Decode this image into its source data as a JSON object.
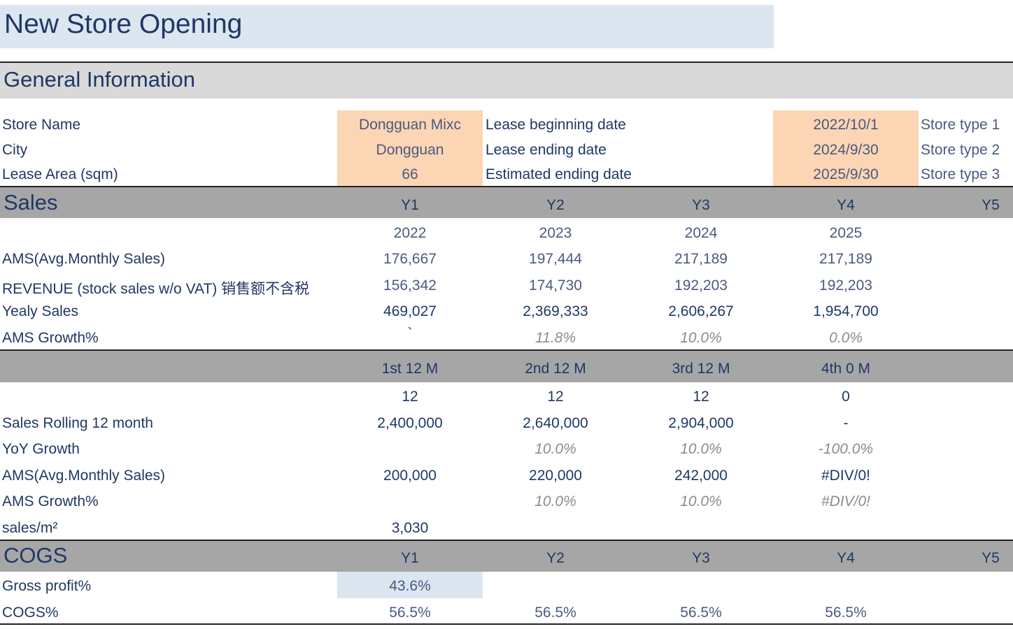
{
  "title": "New Store Opening",
  "general": {
    "heading": "General Information",
    "rows": [
      {
        "label": "Store Name",
        "value": "Dongguan Mixc",
        "lease_label": "Lease beginning date",
        "lease_value": "2022/10/1",
        "type": "Store type 1"
      },
      {
        "label": "City",
        "value": "Dongguan",
        "lease_label": "Lease ending date",
        "lease_value": "2024/9/30",
        "type": "Store type 2"
      },
      {
        "label": "Lease Area (sqm)",
        "value": "66",
        "lease_label": "Estimated ending date",
        "lease_value": "2025/9/30",
        "type": "Store type 3"
      }
    ]
  },
  "sales": {
    "heading": "Sales",
    "year_headers": [
      "Y1",
      "Y2",
      "Y3",
      "Y4",
      "Y5"
    ],
    "years": [
      "2022",
      "2023",
      "2024",
      "2025"
    ],
    "ams": {
      "label": "AMS(Avg.Monthly Sales)",
      "values": [
        "176,667",
        "197,444",
        "217,189",
        "217,189"
      ]
    },
    "revenue": {
      "label": "REVENUE (stock sales w/o VAT) 销售额不含税",
      "values": [
        "156,342",
        "174,730",
        "192,203",
        "192,203"
      ]
    },
    "yearly": {
      "label": "Yealy Sales",
      "values": [
        "469,027",
        "2,369,333",
        "2,606,267",
        "1,954,700"
      ]
    },
    "growth": {
      "label": "AMS Growth%",
      "values": [
        "`",
        "11.8%",
        "10.0%",
        "0.0%"
      ]
    }
  },
  "rolling": {
    "period_headers": [
      "1st 12 M",
      "2nd 12 M",
      "3rd 12 M",
      "4th 0 M"
    ],
    "months": [
      "12",
      "12",
      "12",
      "0"
    ],
    "sales_rolling": {
      "label": "Sales Rolling 12 month",
      "values": [
        "2,400,000",
        "2,640,000",
        "2,904,000",
        "-"
      ]
    },
    "yoy": {
      "label": "YoY Growth",
      "values": [
        "",
        "10.0%",
        "10.0%",
        "-100.0%"
      ]
    },
    "ams": {
      "label": "AMS(Avg.Monthly Sales)",
      "values": [
        "200,000",
        "220,000",
        "242,000",
        "#DIV/0!"
      ]
    },
    "ams_growth": {
      "label": "AMS Growth%",
      "values": [
        "",
        "10.0%",
        "10.0%",
        "#DIV/0!"
      ]
    },
    "sales_sqm": {
      "label": "sales/m²",
      "values": [
        "3,030"
      ]
    }
  },
  "cogs": {
    "heading": "COGS",
    "year_headers": [
      "Y1",
      "Y2",
      "Y3",
      "Y4",
      "Y5"
    ],
    "gross_profit": {
      "label": "Gross profit%",
      "values": [
        "43.6%"
      ]
    },
    "cogs_pct": {
      "label": "COGS%",
      "values": [
        "56.5%",
        "56.5%",
        "56.5%",
        "56.5%"
      ]
    }
  },
  "colors": {
    "header_blue": "#dce6f1",
    "input_peach": "#fcd5b4",
    "section_gray": "#a6a6a6",
    "subtitle_gray": "#d9d9d9",
    "text_navy": "#1f3864"
  }
}
